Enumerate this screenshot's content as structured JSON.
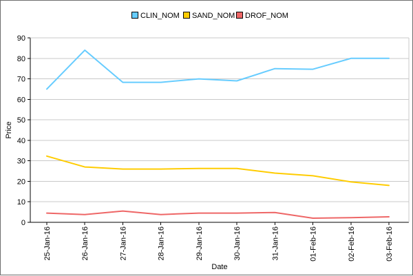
{
  "chart_data": {
    "type": "line",
    "title": "",
    "xlabel": "Date",
    "ylabel": "Price",
    "ylim": [
      0,
      90
    ],
    "yticks": [
      0,
      10,
      20,
      30,
      40,
      50,
      60,
      70,
      80,
      90
    ],
    "grid": true,
    "legend_position": "top-center",
    "categories": [
      "25-Jan-16",
      "26-Jan-16",
      "27-Jan-16",
      "28-Jan-16",
      "29-Jan-16",
      "30-Jan-16",
      "31-Jan-16",
      "01-Feb-16",
      "02-Feb-16",
      "03-Feb-16"
    ],
    "series": [
      {
        "name": "CLIN_NOM",
        "color": "#66ccff",
        "values": [
          65,
          84,
          68.3,
          68.3,
          70,
          69,
          75,
          74.7,
          80,
          80
        ]
      },
      {
        "name": "SAND_NOM",
        "color": "#ffcc00",
        "values": [
          32.3,
          27,
          26,
          26,
          26.3,
          26.3,
          24,
          22.7,
          19.7,
          18
        ]
      },
      {
        "name": "DROF_NOM",
        "color": "#ee6666",
        "values": [
          4.5,
          3.8,
          5.5,
          3.8,
          4.5,
          4.5,
          4.8,
          2,
          2.3,
          2.7
        ]
      }
    ]
  }
}
